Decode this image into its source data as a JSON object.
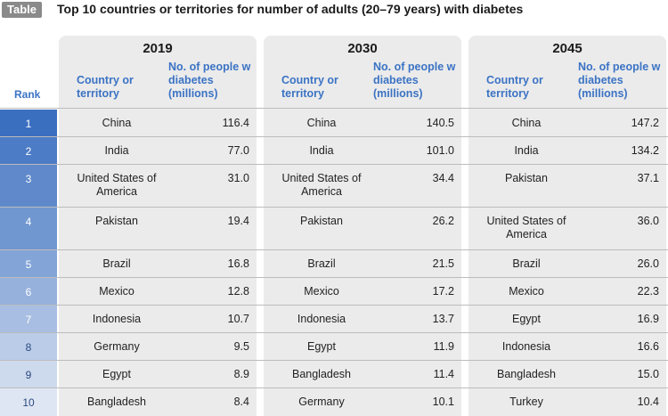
{
  "header": {
    "tag": "Table",
    "title": "Top 10 countries or territories for number of adults (20–79 years) with diabetes"
  },
  "columns": {
    "rank_label": "Rank",
    "country_label": "Country or territory",
    "value_label": "No. of people w diabetes (millions)"
  },
  "years": [
    "2019",
    "2030",
    "2045"
  ],
  "rows": [
    {
      "rank": "1",
      "y2019": {
        "country": "China",
        "value": "116.4"
      },
      "y2030": {
        "country": "China",
        "value": "140.5"
      },
      "y2045": {
        "country": "China",
        "value": "147.2"
      }
    },
    {
      "rank": "2",
      "y2019": {
        "country": "India",
        "value": "77.0"
      },
      "y2030": {
        "country": "India",
        "value": "101.0"
      },
      "y2045": {
        "country": "India",
        "value": "134.2"
      }
    },
    {
      "rank": "3",
      "y2019": {
        "country": "United States of America",
        "value": "31.0"
      },
      "y2030": {
        "country": "United States of America",
        "value": "34.4"
      },
      "y2045": {
        "country": "Pakistan",
        "value": "37.1"
      }
    },
    {
      "rank": "4",
      "y2019": {
        "country": "Pakistan",
        "value": "19.4"
      },
      "y2030": {
        "country": "Pakistan",
        "value": "26.2"
      },
      "y2045": {
        "country": "United States of America",
        "value": "36.0"
      }
    },
    {
      "rank": "5",
      "y2019": {
        "country": "Brazil",
        "value": "16.8"
      },
      "y2030": {
        "country": "Brazil",
        "value": "21.5"
      },
      "y2045": {
        "country": "Brazil",
        "value": "26.0"
      }
    },
    {
      "rank": "6",
      "y2019": {
        "country": "Mexico",
        "value": "12.8"
      },
      "y2030": {
        "country": "Mexico",
        "value": "17.2"
      },
      "y2045": {
        "country": "Mexico",
        "value": "22.3"
      }
    },
    {
      "rank": "7",
      "y2019": {
        "country": "Indonesia",
        "value": "10.7"
      },
      "y2030": {
        "country": "Indonesia",
        "value": "13.7"
      },
      "y2045": {
        "country": "Egypt",
        "value": "16.9"
      }
    },
    {
      "rank": "8",
      "y2019": {
        "country": "Germany",
        "value": "9.5"
      },
      "y2030": {
        "country": "Egypt",
        "value": "11.9"
      },
      "y2045": {
        "country": "Indonesia",
        "value": "16.6"
      }
    },
    {
      "rank": "9",
      "y2019": {
        "country": "Egypt",
        "value": "8.9"
      },
      "y2030": {
        "country": "Bangladesh",
        "value": "11.4"
      },
      "y2045": {
        "country": "Bangladesh",
        "value": "15.0"
      }
    },
    {
      "rank": "10",
      "y2019": {
        "country": "Bangladesh",
        "value": "8.4"
      },
      "y2030": {
        "country": "Germany",
        "value": "10.1"
      },
      "y2045": {
        "country": "Turkey",
        "value": "10.4"
      }
    }
  ],
  "colors": {
    "accent": "#3b73c4",
    "rank_dark": "#3a6fc0",
    "rank_light": "#dfe6f3",
    "panel": "#ebebeb"
  }
}
